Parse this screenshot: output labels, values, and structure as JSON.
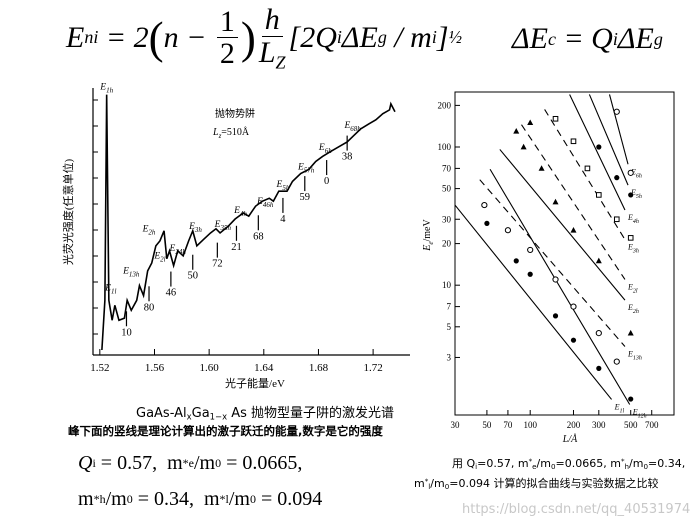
{
  "equation_top": [
    "E",
    "ni",
    " = 2",
    "(",
    "n − ",
    "1",
    "2",
    ")",
    "h",
    "L",
    "Z",
    "[2Q",
    "i",
    "ΔE",
    "g",
    " / m",
    "i",
    "]",
    "½"
  ],
  "equation_right": [
    "ΔE",
    "c",
    " = Q",
    "i",
    "ΔE",
    "g"
  ],
  "equation_bottom_1": [
    "Q",
    "i",
    " = 0.57,  m",
    "e",
    "*",
    "/m",
    "0",
    " = 0.0665,"
  ],
  "equation_bottom_2": [
    "m",
    "h",
    "*",
    "/m",
    "0",
    " = 0.34,  m",
    "l",
    "*",
    "/m",
    "0",
    " = 0.094"
  ],
  "caption_left_1": [
    "GaAs-Al",
    "x",
    "Ga",
    "1−x",
    " As 抛物型量子阱的激发光谱"
  ],
  "caption_left_2": "峰下面的竖线是理论计算出的激子跃迁的能量,数字是它的强度",
  "caption_right_1": [
    "用 Q",
    "i",
    "=0.57, m",
    "e",
    "*",
    "/m",
    "0",
    "=0.0665, m",
    "h",
    "*",
    "/m",
    "0",
    "=0.34,"
  ],
  "caption_right_2": [
    "m",
    "l",
    "*",
    "/m",
    "0",
    "=0.094 计算的拟合曲线与实验数据之比较"
  ],
  "watermark": "https://blog.csdn.net/qq_40531974",
  "chart_data": [
    {
      "type": "line",
      "y_label": "光荧光强度(任意单位)",
      "x_label": "光子能量/eV",
      "xlim": [
        1.515,
        1.747
      ],
      "ylim": [
        0,
        100
      ],
      "xticks": [
        1.52,
        1.56,
        {
          "value": 1.6,
          "label": "1.60"
        },
        1.64,
        1.68,
        1.72
      ],
      "color": "#000000",
      "x": [
        1.5215,
        1.5237,
        1.525,
        1.5266,
        1.529,
        1.531,
        1.534,
        1.538,
        1.54,
        1.543,
        1.547,
        1.549,
        1.552,
        1.555,
        1.558,
        1.561,
        1.564,
        1.567,
        1.569,
        1.571,
        1.574,
        1.577,
        1.581,
        1.585,
        1.588,
        1.591,
        1.596,
        1.601,
        1.605,
        1.608,
        1.614,
        1.619,
        1.625,
        1.629,
        1.634,
        1.639,
        1.644,
        1.647,
        1.651,
        1.657,
        1.661,
        1.667,
        1.673,
        1.678,
        1.683,
        1.689,
        1.695,
        1.701,
        1.705,
        1.711,
        1.717,
        1.722,
        1.727,
        1.732,
        1.733,
        1.736
      ],
      "values": [
        1.9,
        20.8,
        99,
        20.8,
        13.2,
        18.9,
        13.2,
        14,
        20.8,
        17,
        20.8,
        26.4,
        22.6,
        32,
        35,
        41.5,
        43.4,
        47.2,
        36.6,
        39.6,
        34,
        39.6,
        37.7,
        43.4,
        47.2,
        41.5,
        44,
        46.4,
        48,
        46.4,
        49,
        51.7,
        54,
        52.8,
        56.6,
        58.5,
        59.6,
        58.5,
        62.3,
        62.3,
        66,
        69,
        70.6,
        73.6,
        75.5,
        77.4,
        79.2,
        81,
        83,
        86,
        87.9,
        89.4,
        91.7,
        93.2,
        95.5,
        92.5
      ],
      "peak_labels": [
        {
          "label": "E1h",
          "x": 1.525,
          "y": 101
        },
        {
          "label": "E1l",
          "x": 1.528,
          "y": 24.5
        },
        {
          "label": "E13h",
          "x": 1.543,
          "y": 31
        },
        {
          "label": "E2h",
          "x": 1.556,
          "y": 47
        },
        {
          "label": "E2l",
          "x": 1.564,
          "y": 36.6
        },
        {
          "label": "E24h",
          "x": 1.577,
          "y": 39.6
        },
        {
          "label": "E3h",
          "x": 1.59,
          "y": 48
        },
        {
          "label": "E35h",
          "x": 1.61,
          "y": 48.7
        },
        {
          "label": "E4h",
          "x": 1.623,
          "y": 54
        },
        {
          "label": "E46h",
          "x": 1.641,
          "y": 57.4
        },
        {
          "label": "E5h",
          "x": 1.654,
          "y": 63.8
        },
        {
          "label": "E57h",
          "x": 1.671,
          "y": 70.6
        },
        {
          "label": "E6h",
          "x": 1.685,
          "y": 78
        },
        {
          "label": "E68h",
          "x": 1.705,
          "y": 86.4
        }
      ],
      "intensity_labels": [
        {
          "label": "10",
          "x": 1.5395,
          "y": 7.5
        },
        {
          "label": "80",
          "x": 1.556,
          "y": 17
        },
        {
          "label": "46",
          "x": 1.572,
          "y": 22.6
        },
        {
          "label": "50",
          "x": 1.588,
          "y": 29
        },
        {
          "label": "72",
          "x": 1.606,
          "y": 33.6
        },
        {
          "label": "21",
          "x": 1.62,
          "y": 40
        },
        {
          "label": "68",
          "x": 1.636,
          "y": 44
        },
        {
          "label": "4",
          "x": 1.654,
          "y": 50.6
        },
        {
          "label": "59",
          "x": 1.67,
          "y": 58.9
        },
        {
          "label": "0",
          "x": 1.686,
          "y": 65
        },
        {
          "label": "38",
          "x": 1.701,
          "y": 74.3
        }
      ],
      "legend_text": [
        "抛物势阱",
        "L",
        "z",
        "=510Å"
      ]
    },
    {
      "type": "loglog",
      "x_label": "L/Å",
      "y_label": [
        "E",
        "e",
        "/meV"
      ],
      "xlim": [
        30,
        1000
      ],
      "ylim": [
        1.15,
        250
      ],
      "log_x": true,
      "log_y": true,
      "xticks": [
        30,
        50,
        70,
        100,
        200,
        300,
        500,
        700
      ],
      "yticks": [
        3,
        5,
        7,
        10,
        20,
        30,
        50,
        70,
        100,
        200
      ],
      "curves": [
        {
          "name": "E6h",
          "dashed": false,
          "x": [
            356,
            479
          ],
          "values": [
            240,
            75
          ]
        },
        {
          "name": "E5h",
          "dashed": false,
          "x": [
            258,
            479
          ],
          "values": [
            240,
            53
          ]
        },
        {
          "name": "E4h",
          "dashed": false,
          "x": [
            188,
            456
          ],
          "values": [
            240,
            35
          ]
        },
        {
          "name": "E3h",
          "dashed": true,
          "x": [
            126,
            456
          ],
          "values": [
            187,
            21.4
          ]
        },
        {
          "name": "E2l",
          "dashed": true,
          "x": [
            87,
            456
          ],
          "values": [
            145,
            11
          ]
        },
        {
          "name": "E2h",
          "dashed": false,
          "x": [
            61.5,
            456
          ],
          "values": [
            96,
            7.8
          ]
        },
        {
          "name": "E13h",
          "dashed": true,
          "x": [
            44.6,
            456
          ],
          "values": [
            58,
            3.6
          ]
        },
        {
          "name": "E12h",
          "dashed": false,
          "x": [
            52.6,
            492
          ],
          "values": [
            69,
            1.37
          ]
        },
        {
          "name": "E1l",
          "dashed": false,
          "x": [
            30,
            368
          ],
          "values": [
            38,
            1.49
          ]
        }
      ],
      "points": [
        {
          "marker": "filled-circle",
          "x": [
            50,
            80,
            100,
            150,
            200,
            300,
            500,
            400,
            300,
            500
          ],
          "values": [
            28,
            15,
            12,
            6,
            4,
            2.5,
            1.5,
            60,
            100,
            45
          ]
        },
        {
          "marker": "open-circle",
          "x": [
            48,
            70,
            100,
            150,
            200,
            300,
            400,
            400,
            500
          ],
          "values": [
            38,
            25,
            18,
            11,
            7,
            4.5,
            2.8,
            180,
            65
          ]
        },
        {
          "marker": "triangle",
          "x": [
            80,
            90,
            120,
            150,
            200,
            300,
            500,
            100
          ],
          "values": [
            130,
            100,
            70,
            40,
            25,
            15,
            4.5,
            150
          ]
        },
        {
          "marker": "square",
          "x": [
            150,
            200,
            250,
            300,
            400,
            500
          ],
          "values": [
            160,
            110,
            70,
            45,
            30,
            22
          ]
        }
      ]
    }
  ]
}
